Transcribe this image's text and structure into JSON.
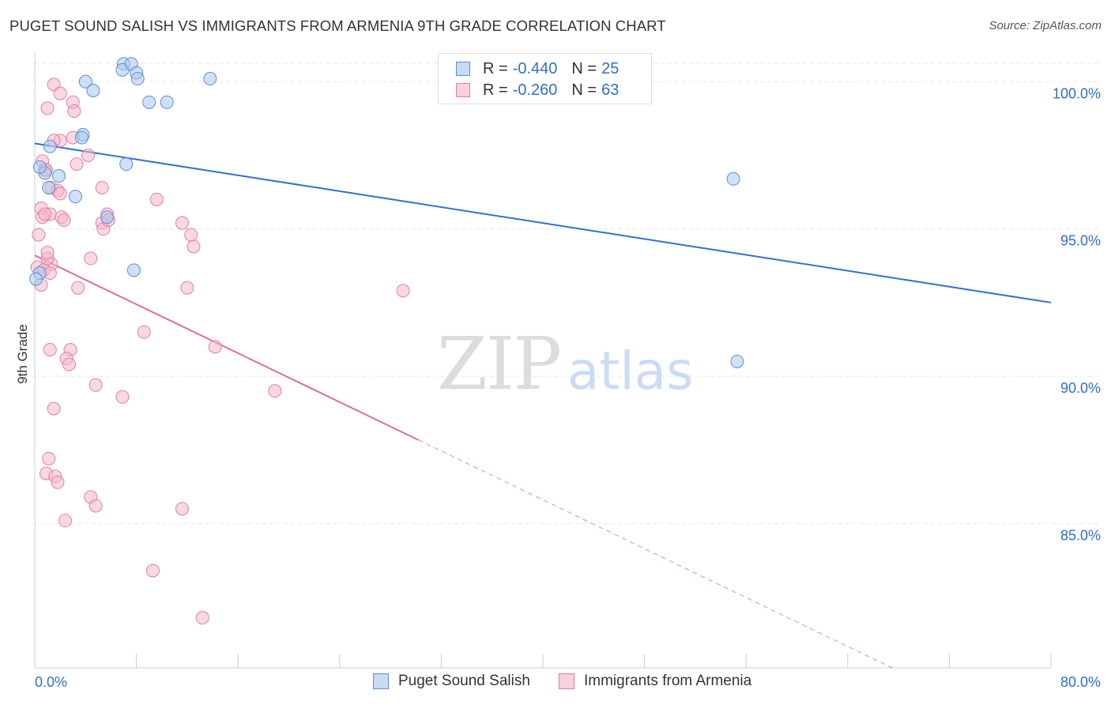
{
  "title": "PUGET SOUND SALISH VS IMMIGRANTS FROM ARMENIA 9TH GRADE CORRELATION CHART",
  "source": "Source: ZipAtlas.com",
  "watermark": {
    "zip": "ZIP",
    "atlas": "atlas"
  },
  "legend": {
    "rows": [
      {
        "r_label": "R =",
        "r_value": "-0.440",
        "n_label": "N =",
        "n_value": "25"
      },
      {
        "r_label": "R =",
        "r_value": "-0.260",
        "n_label": "N =",
        "n_value": "63"
      }
    ]
  },
  "bottom_legend": [
    "Puget Sound Salish",
    "Immigrants from Armenia"
  ],
  "colors": {
    "blue_fill": "#aac8f0",
    "blue_stroke": "#5b8fd4",
    "blue_line": "#2f72d0",
    "pink_fill": "#f5b8cb",
    "pink_stroke": "#e0809f",
    "pink_line": "#e36c97",
    "value_text": "#2f6fcc",
    "grid": "#e6e6e6"
  },
  "chart_data": {
    "type": "scatter",
    "title": "PUGET SOUND SALISH VS IMMIGRANTS FROM ARMENIA 9TH GRADE CORRELATION CHART",
    "xlabel": "",
    "ylabel": "9th Grade",
    "xlim": [
      0,
      80
    ],
    "ylim": [
      80.1,
      101.0
    ],
    "x_tick_labels": [
      "0.0%",
      "80.0%"
    ],
    "y_ticks": [
      {
        "value": 100,
        "label": "100.0%"
      },
      {
        "value": 95,
        "label": "95.0%"
      },
      {
        "value": 90,
        "label": "90.0%"
      },
      {
        "value": 85,
        "label": "85.0%"
      }
    ],
    "series": [
      {
        "name": "Puget Sound Salish",
        "r": -0.44,
        "n": 25,
        "trend": {
          "x": [
            0,
            80
          ],
          "y": [
            97.9,
            92.5
          ],
          "solid_until": 80
        },
        "points": [
          [
            7.0,
            100.6
          ],
          [
            6.9,
            100.4
          ],
          [
            7.6,
            100.6
          ],
          [
            8.0,
            100.3
          ],
          [
            4.0,
            100.0
          ],
          [
            8.1,
            100.1
          ],
          [
            13.8,
            100.1
          ],
          [
            4.6,
            99.7
          ],
          [
            9.0,
            99.3
          ],
          [
            10.4,
            99.3
          ],
          [
            3.8,
            98.2
          ],
          [
            1.2,
            97.8
          ],
          [
            7.2,
            97.2
          ],
          [
            0.8,
            96.9
          ],
          [
            1.9,
            96.8
          ],
          [
            0.4,
            97.1
          ],
          [
            1.1,
            96.4
          ],
          [
            3.2,
            96.1
          ],
          [
            5.7,
            95.4
          ],
          [
            55.0,
            96.7
          ],
          [
            7.8,
            93.6
          ],
          [
            0.4,
            93.5
          ],
          [
            0.1,
            93.3
          ],
          [
            55.3,
            90.5
          ],
          [
            3.7,
            98.1
          ]
        ]
      },
      {
        "name": "Immigrants from Armenia",
        "r": -0.26,
        "n": 63,
        "trend": {
          "x": [
            0,
            67.5
          ],
          "y": [
            94.1,
            80.1
          ],
          "solid_until": 30.2
        },
        "points": [
          [
            1.5,
            99.9
          ],
          [
            2.0,
            99.6
          ],
          [
            3.0,
            99.3
          ],
          [
            1.0,
            99.1
          ],
          [
            3.1,
            99.0
          ],
          [
            3.0,
            98.1
          ],
          [
            2.0,
            98.0
          ],
          [
            1.5,
            98.0
          ],
          [
            4.2,
            97.5
          ],
          [
            0.6,
            97.3
          ],
          [
            3.3,
            97.2
          ],
          [
            0.8,
            97.0
          ],
          [
            1.3,
            96.4
          ],
          [
            1.8,
            96.3
          ],
          [
            5.3,
            96.4
          ],
          [
            9.6,
            96.0
          ],
          [
            0.5,
            95.7
          ],
          [
            1.2,
            95.5
          ],
          [
            0.6,
            95.4
          ],
          [
            0.8,
            95.5
          ],
          [
            2.1,
            95.4
          ],
          [
            2.3,
            95.3
          ],
          [
            5.7,
            95.5
          ],
          [
            5.3,
            95.2
          ],
          [
            11.6,
            95.2
          ],
          [
            5.4,
            95.0
          ],
          [
            12.3,
            94.8
          ],
          [
            12.5,
            94.4
          ],
          [
            0.3,
            94.8
          ],
          [
            4.4,
            94.0
          ],
          [
            1.3,
            93.8
          ],
          [
            0.2,
            93.7
          ],
          [
            0.7,
            93.6
          ],
          [
            1.2,
            93.5
          ],
          [
            3.4,
            93.0
          ],
          [
            12.0,
            93.0
          ],
          [
            29.0,
            92.9
          ],
          [
            8.6,
            91.5
          ],
          [
            14.2,
            91.0
          ],
          [
            1.2,
            90.9
          ],
          [
            2.8,
            90.9
          ],
          [
            2.5,
            90.6
          ],
          [
            2.7,
            90.4
          ],
          [
            4.8,
            89.7
          ],
          [
            6.9,
            89.3
          ],
          [
            18.9,
            89.5
          ],
          [
            1.5,
            88.9
          ],
          [
            1.1,
            87.2
          ],
          [
            0.9,
            86.7
          ],
          [
            1.6,
            86.6
          ],
          [
            1.8,
            86.4
          ],
          [
            4.4,
            85.9
          ],
          [
            4.8,
            85.6
          ],
          [
            11.6,
            85.5
          ],
          [
            2.4,
            85.1
          ],
          [
            9.3,
            83.4
          ],
          [
            13.2,
            81.8
          ],
          [
            0.5,
            93.1
          ],
          [
            1.0,
            94.0
          ],
          [
            0.9,
            97.0
          ],
          [
            2.0,
            96.2
          ],
          [
            5.8,
            95.3
          ],
          [
            1.0,
            94.2
          ]
        ]
      }
    ]
  }
}
